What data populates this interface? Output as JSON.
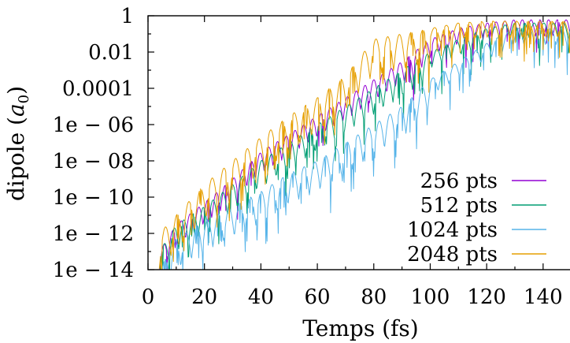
{
  "chart_data": {
    "type": "line",
    "title": "",
    "xlabel": "Temps (fs)",
    "ylabel_prefix": "dipole (",
    "ylabel_var": "a",
    "ylabel_sub": "0",
    "ylabel_suffix": ")",
    "y_scale": "log",
    "xlim": [
      0,
      150
    ],
    "ylim": [
      1e-14,
      1
    ],
    "x_ticks": [
      0,
      20,
      40,
      60,
      80,
      100,
      120,
      140
    ],
    "x_tick_labels": [
      "0",
      "20",
      "40",
      "60",
      "80",
      "100",
      "120",
      "140"
    ],
    "y_ticks": [
      1e-14,
      1e-12,
      1e-10,
      1e-08,
      1e-06,
      0.0001,
      0.01,
      1
    ],
    "y_tick_labels": [
      "1e − 14",
      "1e − 12",
      "1e − 10",
      "1e − 08",
      "1e − 06",
      "0.0001",
      "0.01",
      "1"
    ],
    "grid": false,
    "legend_position": "bottom-right",
    "series": [
      {
        "name": "256 pts",
        "color": "#9400d3",
        "x": [
          4,
          10,
          20,
          30,
          40,
          50,
          60,
          70,
          80,
          90,
          100,
          110,
          120,
          130,
          140,
          150
        ],
        "y": [
          1e-13,
          3e-12,
          5e-11,
          1e-09,
          3e-08,
          3e-07,
          3e-06,
          3e-05,
          0.0003,
          0.003,
          0.05,
          0.2,
          0.4,
          0.6,
          0.6,
          0.6
        ]
      },
      {
        "name": "512 pts",
        "color": "#009e73",
        "x": [
          4,
          10,
          20,
          30,
          40,
          50,
          60,
          70,
          80,
          90,
          100,
          110,
          120,
          130,
          140,
          150
        ],
        "y": [
          1e-13,
          3e-12,
          3e-11,
          5e-10,
          1e-08,
          1e-07,
          1e-06,
          1e-05,
          0.0001,
          0.001,
          0.01,
          0.05,
          0.2,
          0.4,
          0.4,
          0.4
        ]
      },
      {
        "name": "1024 pts",
        "color": "#56b4e9",
        "x": [
          4,
          10,
          20,
          30,
          40,
          50,
          60,
          70,
          80,
          90,
          100,
          110,
          120,
          130,
          140,
          150
        ],
        "y": [
          1e-14,
          5e-13,
          5e-12,
          3e-11,
          2e-10,
          2e-09,
          1e-08,
          1e-07,
          1e-06,
          1e-05,
          0.0003,
          0.003,
          0.03,
          0.2,
          0.2,
          0.2
        ]
      },
      {
        "name": "2048 pts",
        "color": "#e69f00",
        "x": [
          4,
          10,
          20,
          30,
          40,
          50,
          60,
          70,
          80,
          90,
          100,
          110,
          120,
          130,
          140,
          150
        ],
        "y": [
          1e-12,
          1e-11,
          5e-10,
          1e-08,
          2e-07,
          3e-06,
          3e-05,
          0.0005,
          0.05,
          0.1,
          0.2,
          0.4,
          0.5,
          0.5,
          0.5,
          0.5
        ]
      }
    ]
  }
}
